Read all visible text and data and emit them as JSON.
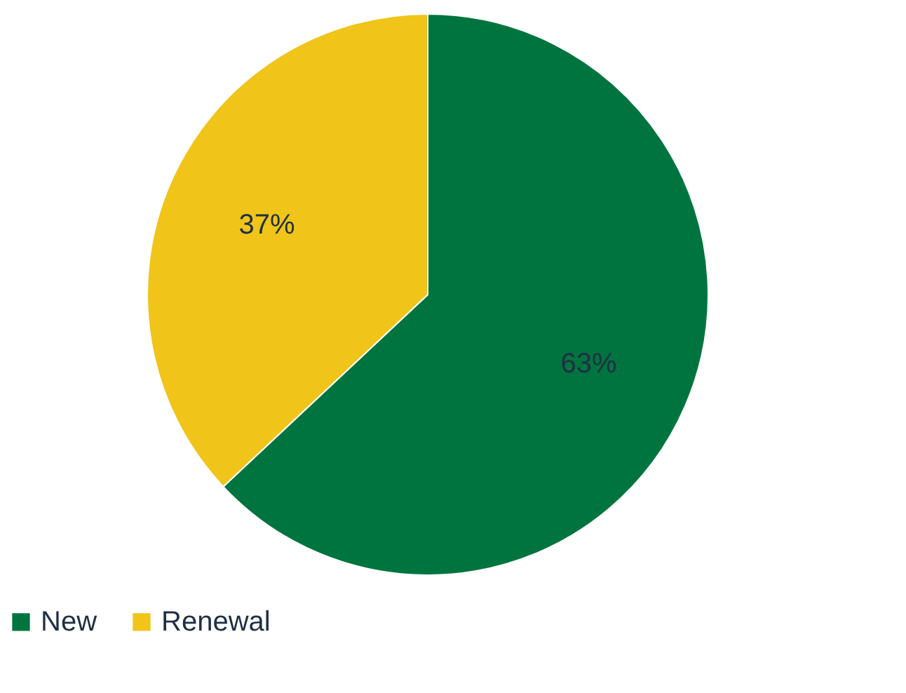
{
  "chart_data": {
    "type": "pie",
    "categories": [
      "New",
      "Renewal"
    ],
    "values": [
      63,
      37
    ],
    "colors": [
      "#00743f",
      "#f0c419"
    ],
    "value_labels": [
      "63%",
      "37%"
    ],
    "legend": "bottom"
  }
}
